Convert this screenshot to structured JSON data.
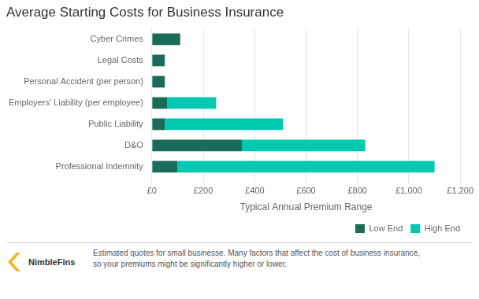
{
  "chart_data": {
    "type": "bar",
    "orientation": "horizontal",
    "stacked": true,
    "title": "Average Starting Costs for Business Insurance",
    "categories": [
      "Professional Indemnity",
      "D&O",
      "Public Liability",
      "Employers' Liability (per employee)",
      "Personal Accident (per person)",
      "Legal Costs",
      "Cyber Crimes"
    ],
    "series": [
      {
        "name": "Low End",
        "color": "#1a6b58",
        "values": [
          100,
          350,
          50,
          60,
          50,
          50,
          110
        ]
      },
      {
        "name": "High End",
        "color": "#00c9af",
        "values": [
          1000,
          480,
          460,
          190,
          0,
          0,
          0
        ]
      }
    ],
    "xlabel": "Typical Annual Premium Range",
    "xlim": [
      0,
      1200
    ],
    "xticks": [
      {
        "value": 0,
        "label": "£0"
      },
      {
        "value": 200,
        "label": "£200"
      },
      {
        "value": 400,
        "label": "£400"
      },
      {
        "value": 600,
        "label": "£600"
      },
      {
        "value": 800,
        "label": "£800"
      },
      {
        "value": 1000,
        "label": "£1,000"
      },
      {
        "value": 1200,
        "label": "£1,200"
      }
    ],
    "grid": true,
    "legend": "lower right",
    "annotations": [
      "Estimated quotes for small businesse. Many factors that affect the cost of business insurance,\nso your premiums might be significantly higher or lower.",
      "NimbleFins"
    ]
  }
}
